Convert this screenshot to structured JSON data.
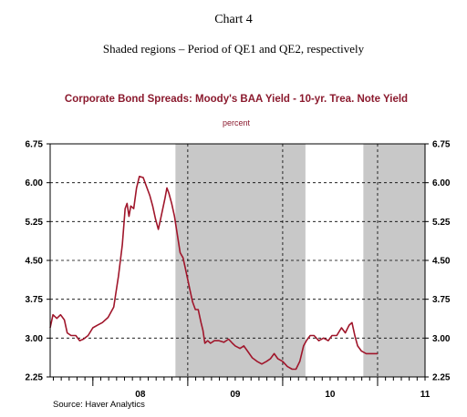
{
  "header": {
    "chart_number": "Chart 4",
    "subtitle": "Shaded regions – Period of QE1 and QE2, respectively"
  },
  "source": "Source: Haver Analytics",
  "colors": {
    "series": "#a0162b",
    "title": "#8b1a2e",
    "shade": "#c8c8c8",
    "axis": "#000000"
  },
  "chart_data": {
    "type": "line",
    "title": "Corporate Bond Spreads:  Moody's BAA Yield - 10-yr. Trea. Note Yield",
    "ylabel": "percent",
    "xlabel": "",
    "ylim": [
      2.25,
      6.75
    ],
    "xlim": [
      2007.55,
      2011.5
    ],
    "yticks": [
      "6.75",
      "6.00",
      "5.25",
      "4.50",
      "3.75",
      "3.00",
      "2.25"
    ],
    "xtick_labels": [
      {
        "x": 2008.5,
        "label": "08"
      },
      {
        "x": 2009.5,
        "label": "09"
      },
      {
        "x": 2010.5,
        "label": "10"
      },
      {
        "x": 2011.5,
        "label": "11"
      }
    ],
    "shaded_periods": [
      {
        "name": "QE1",
        "start": 2008.87,
        "end": 2010.24
      },
      {
        "name": "QE2",
        "start": 2010.85,
        "end": 2011.65
      }
    ],
    "grid": "dashed",
    "series": [
      {
        "name": "",
        "points": [
          [
            2007.55,
            3.2
          ],
          [
            2007.58,
            3.45
          ],
          [
            2007.62,
            3.38
          ],
          [
            2007.66,
            3.45
          ],
          [
            2007.7,
            3.35
          ],
          [
            2007.73,
            3.1
          ],
          [
            2007.77,
            3.05
          ],
          [
            2007.82,
            3.05
          ],
          [
            2007.86,
            2.95
          ],
          [
            2007.9,
            2.98
          ],
          [
            2007.95,
            3.05
          ],
          [
            2008.0,
            3.2
          ],
          [
            2008.05,
            3.25
          ],
          [
            2008.1,
            3.3
          ],
          [
            2008.16,
            3.4
          ],
          [
            2008.22,
            3.6
          ],
          [
            2008.27,
            4.2
          ],
          [
            2008.31,
            4.8
          ],
          [
            2008.34,
            5.5
          ],
          [
            2008.36,
            5.6
          ],
          [
            2008.38,
            5.35
          ],
          [
            2008.4,
            5.55
          ],
          [
            2008.43,
            5.5
          ],
          [
            2008.46,
            5.9
          ],
          [
            2008.49,
            6.12
          ],
          [
            2008.53,
            6.1
          ],
          [
            2008.56,
            5.95
          ],
          [
            2008.6,
            5.75
          ],
          [
            2008.63,
            5.55
          ],
          [
            2008.66,
            5.3
          ],
          [
            2008.69,
            5.1
          ],
          [
            2008.72,
            5.35
          ],
          [
            2008.76,
            5.7
          ],
          [
            2008.78,
            5.9
          ],
          [
            2008.8,
            5.8
          ],
          [
            2008.83,
            5.6
          ],
          [
            2008.86,
            5.35
          ],
          [
            2008.89,
            5.0
          ],
          [
            2008.92,
            4.65
          ],
          [
            2008.95,
            4.55
          ],
          [
            2008.98,
            4.3
          ],
          [
            2009.02,
            3.95
          ],
          [
            2009.05,
            3.7
          ],
          [
            2009.08,
            3.55
          ],
          [
            2009.11,
            3.55
          ],
          [
            2009.14,
            3.3
          ],
          [
            2009.16,
            3.15
          ],
          [
            2009.18,
            2.9
          ],
          [
            2009.21,
            2.95
          ],
          [
            2009.24,
            2.9
          ],
          [
            2009.28,
            2.95
          ],
          [
            2009.33,
            2.95
          ],
          [
            2009.38,
            2.92
          ],
          [
            2009.43,
            2.98
          ],
          [
            2009.47,
            2.9
          ],
          [
            2009.5,
            2.85
          ],
          [
            2009.55,
            2.8
          ],
          [
            2009.59,
            2.85
          ],
          [
            2009.63,
            2.75
          ],
          [
            2009.68,
            2.62
          ],
          [
            2009.73,
            2.55
          ],
          [
            2009.78,
            2.5
          ],
          [
            2009.83,
            2.55
          ],
          [
            2009.87,
            2.6
          ],
          [
            2009.91,
            2.7
          ],
          [
            2009.95,
            2.6
          ],
          [
            2010.0,
            2.55
          ],
          [
            2010.05,
            2.45
          ],
          [
            2010.1,
            2.4
          ],
          [
            2010.14,
            2.4
          ],
          [
            2010.18,
            2.55
          ],
          [
            2010.22,
            2.85
          ],
          [
            2010.25,
            2.95
          ],
          [
            2010.29,
            3.05
          ],
          [
            2010.33,
            3.05
          ],
          [
            2010.38,
            2.95
          ],
          [
            2010.43,
            3.0
          ],
          [
            2010.48,
            2.95
          ],
          [
            2010.52,
            3.05
          ],
          [
            2010.57,
            3.05
          ],
          [
            2010.62,
            3.2
          ],
          [
            2010.66,
            3.1
          ],
          [
            2010.7,
            3.25
          ],
          [
            2010.73,
            3.3
          ],
          [
            2010.76,
            3.05
          ],
          [
            2010.79,
            2.85
          ],
          [
            2010.83,
            2.75
          ],
          [
            2010.88,
            2.7
          ],
          [
            2010.92,
            2.7
          ],
          [
            2010.96,
            2.7
          ],
          [
            2011.0,
            2.7
          ]
        ]
      }
    ]
  }
}
